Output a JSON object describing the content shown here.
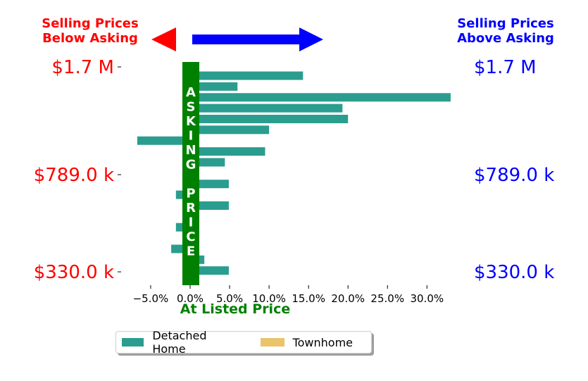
{
  "chart_data": {
    "type": "bar",
    "orientation": "horizontal",
    "series": [
      {
        "name": "Detached Home",
        "color": "#2a9d8f",
        "values": [
          14.3,
          6.0,
          33.0,
          19.3,
          20.0,
          10.0,
          -6.7,
          9.5,
          4.4,
          1.0,
          4.9,
          -1.8,
          4.9,
          1.0,
          -1.8,
          1.0,
          -2.4,
          1.8,
          4.9
        ]
      },
      {
        "name": "Townhome",
        "color": "#e9c46a",
        "values": []
      }
    ],
    "x_ticks": [
      -5,
      0,
      5,
      10,
      15,
      20,
      25,
      30
    ],
    "x_tick_labels": [
      "−5.0%",
      "0.0%",
      "5.0%",
      "10.0%",
      "15.0%",
      "20.0%",
      "25.0%",
      "30.0%"
    ],
    "xlim": [
      -8.5,
      33.5
    ],
    "xlabel": "At Listed Price",
    "y_tick_labels": [
      "$1.7 M",
      "$789.0 k",
      "$330.0 k"
    ],
    "y_tick_rows": [
      0,
      10,
      19
    ],
    "asking_price_label": [
      "A",
      "S",
      "K",
      "I",
      "N",
      "G",
      "",
      "P",
      "R",
      "I",
      "C",
      "E"
    ],
    "below_label": [
      "Selling Prices",
      "Below Asking"
    ],
    "above_label": [
      "Selling Prices",
      "Above Asking"
    ],
    "colors": {
      "below": "#ff0000",
      "above": "#0000ff",
      "asking": "#008000",
      "bar": "#2a9d8f"
    },
    "legend_position": "bottom-center",
    "grid": false
  }
}
